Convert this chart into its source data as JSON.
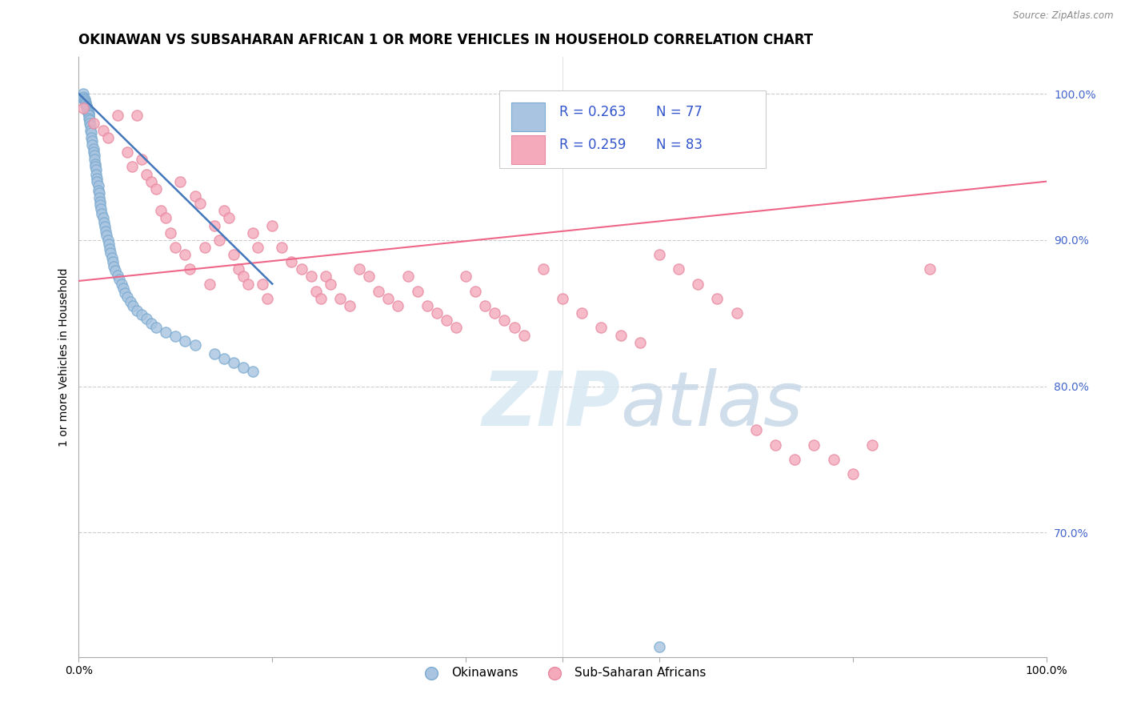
{
  "title": "OKINAWAN VS SUBSAHARAN AFRICAN 1 OR MORE VEHICLES IN HOUSEHOLD CORRELATION CHART",
  "source": "Source: ZipAtlas.com",
  "ylabel": "1 or more Vehicles in Household",
  "xlim": [
    0,
    1.0
  ],
  "ylim": [
    0.615,
    1.025
  ],
  "right_yticks": [
    1.0,
    0.9,
    0.8,
    0.7
  ],
  "right_yticklabels": [
    "100.0%",
    "90.0%",
    "80.0%",
    "70.0%"
  ],
  "legend_r_blue": "R = 0.263",
  "legend_n_blue": "N = 77",
  "legend_r_pink": "R = 0.259",
  "legend_n_pink": "N = 83",
  "legend_label1": "Okinawans",
  "legend_label2": "Sub-Saharan Africans",
  "blue_color": "#A8C4E0",
  "blue_edge_color": "#7AAAD0",
  "pink_color": "#F4AABB",
  "pink_edge_color": "#E888A0",
  "blue_line_color": "#4477BB",
  "pink_line_color": "#EE6688",
  "title_fontsize": 12,
  "axis_label_fontsize": 10,
  "tick_fontsize": 10,
  "right_tick_color": "#4466CC",
  "blue_scatter_x": [
    0.005,
    0.005,
    0.005,
    0.006,
    0.006,
    0.007,
    0.007,
    0.008,
    0.008,
    0.009,
    0.009,
    0.01,
    0.01,
    0.01,
    0.01,
    0.011,
    0.011,
    0.012,
    0.012,
    0.013,
    0.013,
    0.014,
    0.014,
    0.015,
    0.015,
    0.016,
    0.016,
    0.017,
    0.017,
    0.018,
    0.018,
    0.019,
    0.019,
    0.02,
    0.02,
    0.021,
    0.021,
    0.022,
    0.022,
    0.023,
    0.024,
    0.025,
    0.026,
    0.027,
    0.028,
    0.029,
    0.03,
    0.031,
    0.032,
    0.033,
    0.034,
    0.035,
    0.036,
    0.038,
    0.04,
    0.042,
    0.044,
    0.046,
    0.048,
    0.05,
    0.053,
    0.056,
    0.06,
    0.065,
    0.07,
    0.075,
    0.08,
    0.09,
    0.1,
    0.11,
    0.12,
    0.14,
    0.15,
    0.16,
    0.17,
    0.18,
    0.6
  ],
  "blue_scatter_y": [
    1.0,
    0.998,
    0.997,
    0.996,
    0.995,
    0.994,
    0.993,
    0.992,
    0.991,
    0.99,
    0.988,
    0.987,
    0.986,
    0.985,
    0.983,
    0.982,
    0.98,
    0.978,
    0.975,
    0.973,
    0.97,
    0.968,
    0.965,
    0.962,
    0.96,
    0.958,
    0.955,
    0.952,
    0.95,
    0.948,
    0.945,
    0.942,
    0.94,
    0.937,
    0.934,
    0.932,
    0.929,
    0.926,
    0.924,
    0.921,
    0.918,
    0.915,
    0.912,
    0.909,
    0.906,
    0.903,
    0.9,
    0.897,
    0.894,
    0.891,
    0.888,
    0.885,
    0.882,
    0.879,
    0.876,
    0.873,
    0.87,
    0.867,
    0.864,
    0.861,
    0.858,
    0.855,
    0.852,
    0.849,
    0.846,
    0.843,
    0.84,
    0.837,
    0.834,
    0.831,
    0.828,
    0.822,
    0.819,
    0.816,
    0.813,
    0.81,
    0.622
  ],
  "pink_scatter_x": [
    0.005,
    0.015,
    0.025,
    0.03,
    0.04,
    0.05,
    0.055,
    0.06,
    0.065,
    0.07,
    0.075,
    0.08,
    0.085,
    0.09,
    0.095,
    0.1,
    0.105,
    0.11,
    0.115,
    0.12,
    0.125,
    0.13,
    0.135,
    0.14,
    0.145,
    0.15,
    0.155,
    0.16,
    0.165,
    0.17,
    0.175,
    0.18,
    0.185,
    0.19,
    0.195,
    0.2,
    0.21,
    0.22,
    0.23,
    0.24,
    0.245,
    0.25,
    0.255,
    0.26,
    0.27,
    0.28,
    0.29,
    0.3,
    0.31,
    0.32,
    0.33,
    0.34,
    0.35,
    0.36,
    0.37,
    0.38,
    0.39,
    0.4,
    0.41,
    0.42,
    0.43,
    0.44,
    0.45,
    0.46,
    0.48,
    0.5,
    0.52,
    0.54,
    0.56,
    0.58,
    0.6,
    0.62,
    0.64,
    0.66,
    0.68,
    0.7,
    0.72,
    0.74,
    0.76,
    0.78,
    0.8,
    0.82,
    0.88
  ],
  "pink_scatter_y": [
    0.99,
    0.98,
    0.975,
    0.97,
    0.985,
    0.96,
    0.95,
    0.985,
    0.955,
    0.945,
    0.94,
    0.935,
    0.92,
    0.915,
    0.905,
    0.895,
    0.94,
    0.89,
    0.88,
    0.93,
    0.925,
    0.895,
    0.87,
    0.91,
    0.9,
    0.92,
    0.915,
    0.89,
    0.88,
    0.875,
    0.87,
    0.905,
    0.895,
    0.87,
    0.86,
    0.91,
    0.895,
    0.885,
    0.88,
    0.875,
    0.865,
    0.86,
    0.875,
    0.87,
    0.86,
    0.855,
    0.88,
    0.875,
    0.865,
    0.86,
    0.855,
    0.875,
    0.865,
    0.855,
    0.85,
    0.845,
    0.84,
    0.875,
    0.865,
    0.855,
    0.85,
    0.845,
    0.84,
    0.835,
    0.88,
    0.86,
    0.85,
    0.84,
    0.835,
    0.83,
    0.89,
    0.88,
    0.87,
    0.86,
    0.85,
    0.77,
    0.76,
    0.75,
    0.76,
    0.75,
    0.74,
    0.76,
    0.88
  ],
  "pink_trendline_x0": 0.0,
  "pink_trendline_y0": 0.872,
  "pink_trendline_x1": 1.0,
  "pink_trendline_y1": 0.94,
  "blue_trendline_x0": 0.0,
  "blue_trendline_y0": 1.0,
  "blue_trendline_x1": 0.2,
  "blue_trendline_y1": 0.87
}
